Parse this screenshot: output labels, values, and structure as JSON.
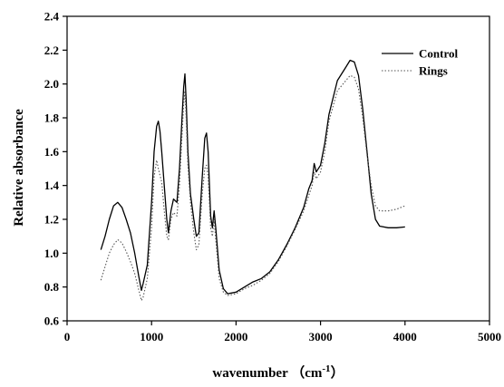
{
  "chart_data": {
    "type": "line",
    "title": "",
    "xlabel": "wavenumber",
    "xlabel_unit_prefix": "（cm",
    "xlabel_unit_exp": "-1",
    "xlabel_unit_suffix": "）",
    "ylabel": "Relative absorbance",
    "xlim": [
      0,
      5000
    ],
    "ylim": [
      0.6,
      2.4
    ],
    "xticks": [
      0,
      1000,
      2000,
      3000,
      4000,
      5000
    ],
    "xtick_labels": [
      "0",
      "1000",
      "2000",
      "3000",
      "4000",
      "5000"
    ],
    "yticks": [
      0.6,
      0.8,
      1.0,
      1.2,
      1.4,
      1.6,
      1.8,
      2.0,
      2.2,
      2.4
    ],
    "ytick_labels": [
      "0.6",
      "0.8",
      "1.0",
      "1.2",
      "1.4",
      "1.6",
      "1.8",
      "2.0",
      "2.2",
      "2.4"
    ],
    "grid": false,
    "legend_position": "top-right",
    "series": [
      {
        "name": "Control",
        "style": "solid",
        "color": "#000000",
        "points": [
          [
            400,
            1.02
          ],
          [
            450,
            1.1
          ],
          [
            500,
            1.2
          ],
          [
            550,
            1.28
          ],
          [
            600,
            1.3
          ],
          [
            650,
            1.27
          ],
          [
            700,
            1.2
          ],
          [
            750,
            1.12
          ],
          [
            800,
            1.0
          ],
          [
            850,
            0.86
          ],
          [
            880,
            0.78
          ],
          [
            900,
            0.82
          ],
          [
            950,
            0.93
          ],
          [
            1000,
            1.3
          ],
          [
            1030,
            1.6
          ],
          [
            1060,
            1.75
          ],
          [
            1080,
            1.78
          ],
          [
            1100,
            1.72
          ],
          [
            1120,
            1.6
          ],
          [
            1150,
            1.4
          ],
          [
            1180,
            1.2
          ],
          [
            1200,
            1.12
          ],
          [
            1230,
            1.25
          ],
          [
            1260,
            1.32
          ],
          [
            1300,
            1.3
          ],
          [
            1330,
            1.5
          ],
          [
            1360,
            1.8
          ],
          [
            1380,
            1.98
          ],
          [
            1395,
            2.06
          ],
          [
            1410,
            1.9
          ],
          [
            1430,
            1.6
          ],
          [
            1460,
            1.35
          ],
          [
            1500,
            1.2
          ],
          [
            1530,
            1.1
          ],
          [
            1560,
            1.12
          ],
          [
            1600,
            1.45
          ],
          [
            1630,
            1.68
          ],
          [
            1650,
            1.71
          ],
          [
            1670,
            1.6
          ],
          [
            1700,
            1.22
          ],
          [
            1720,
            1.15
          ],
          [
            1740,
            1.25
          ],
          [
            1760,
            1.15
          ],
          [
            1800,
            0.9
          ],
          [
            1850,
            0.79
          ],
          [
            1900,
            0.76
          ],
          [
            2000,
            0.77
          ],
          [
            2100,
            0.8
          ],
          [
            2200,
            0.83
          ],
          [
            2300,
            0.85
          ],
          [
            2400,
            0.89
          ],
          [
            2500,
            0.96
          ],
          [
            2600,
            1.05
          ],
          [
            2700,
            1.15
          ],
          [
            2800,
            1.27
          ],
          [
            2860,
            1.38
          ],
          [
            2900,
            1.43
          ],
          [
            2925,
            1.53
          ],
          [
            2950,
            1.48
          ],
          [
            3000,
            1.52
          ],
          [
            3050,
            1.65
          ],
          [
            3100,
            1.82
          ],
          [
            3200,
            2.02
          ],
          [
            3300,
            2.1
          ],
          [
            3350,
            2.14
          ],
          [
            3400,
            2.13
          ],
          [
            3450,
            2.05
          ],
          [
            3500,
            1.85
          ],
          [
            3550,
            1.6
          ],
          [
            3600,
            1.35
          ],
          [
            3650,
            1.2
          ],
          [
            3700,
            1.16
          ],
          [
            3800,
            1.15
          ],
          [
            3900,
            1.15
          ],
          [
            4000,
            1.155
          ]
        ]
      },
      {
        "name": "Rings",
        "style": "dotted",
        "color": "#555555",
        "points": [
          [
            400,
            0.84
          ],
          [
            450,
            0.92
          ],
          [
            500,
            1.0
          ],
          [
            550,
            1.05
          ],
          [
            600,
            1.08
          ],
          [
            650,
            1.06
          ],
          [
            700,
            1.01
          ],
          [
            750,
            0.95
          ],
          [
            800,
            0.88
          ],
          [
            850,
            0.78
          ],
          [
            880,
            0.72
          ],
          [
            900,
            0.74
          ],
          [
            950,
            0.85
          ],
          [
            1000,
            1.15
          ],
          [
            1030,
            1.45
          ],
          [
            1060,
            1.55
          ],
          [
            1080,
            1.5
          ],
          [
            1100,
            1.46
          ],
          [
            1120,
            1.42
          ],
          [
            1150,
            1.25
          ],
          [
            1180,
            1.1
          ],
          [
            1200,
            1.08
          ],
          [
            1230,
            1.2
          ],
          [
            1260,
            1.24
          ],
          [
            1300,
            1.22
          ],
          [
            1330,
            1.4
          ],
          [
            1360,
            1.7
          ],
          [
            1380,
            1.88
          ],
          [
            1395,
            1.96
          ],
          [
            1410,
            1.8
          ],
          [
            1430,
            1.52
          ],
          [
            1460,
            1.3
          ],
          [
            1500,
            1.12
          ],
          [
            1530,
            1.02
          ],
          [
            1560,
            1.05
          ],
          [
            1600,
            1.35
          ],
          [
            1630,
            1.5
          ],
          [
            1650,
            1.52
          ],
          [
            1670,
            1.45
          ],
          [
            1700,
            1.15
          ],
          [
            1720,
            1.1
          ],
          [
            1740,
            1.2
          ],
          [
            1760,
            1.08
          ],
          [
            1800,
            0.85
          ],
          [
            1850,
            0.77
          ],
          [
            1900,
            0.75
          ],
          [
            2000,
            0.76
          ],
          [
            2100,
            0.79
          ],
          [
            2200,
            0.81
          ],
          [
            2300,
            0.84
          ],
          [
            2400,
            0.88
          ],
          [
            2500,
            0.95
          ],
          [
            2600,
            1.04
          ],
          [
            2700,
            1.14
          ],
          [
            2800,
            1.25
          ],
          [
            2860,
            1.34
          ],
          [
            2900,
            1.4
          ],
          [
            2925,
            1.48
          ],
          [
            2950,
            1.44
          ],
          [
            3000,
            1.48
          ],
          [
            3050,
            1.6
          ],
          [
            3100,
            1.78
          ],
          [
            3200,
            1.96
          ],
          [
            3300,
            2.02
          ],
          [
            3350,
            2.05
          ],
          [
            3400,
            2.04
          ],
          [
            3450,
            1.97
          ],
          [
            3500,
            1.8
          ],
          [
            3550,
            1.58
          ],
          [
            3600,
            1.4
          ],
          [
            3650,
            1.28
          ],
          [
            3700,
            1.25
          ],
          [
            3800,
            1.25
          ],
          [
            3900,
            1.26
          ],
          [
            4000,
            1.28
          ]
        ]
      }
    ]
  }
}
